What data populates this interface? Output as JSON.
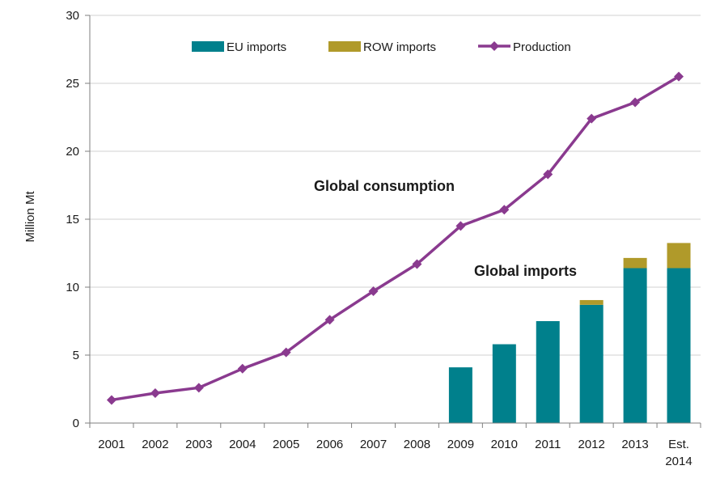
{
  "chart_data": {
    "type": "bar",
    "title": "",
    "xlabel": "",
    "ylabel": "Million Mt",
    "ylim": [
      0,
      30
    ],
    "yticks": [
      0,
      5,
      10,
      15,
      20,
      25,
      30
    ],
    "categories": [
      [
        "2001"
      ],
      [
        "2002"
      ],
      [
        "2003"
      ],
      [
        "2004"
      ],
      [
        "2005"
      ],
      [
        "2006"
      ],
      [
        "2007"
      ],
      [
        "2008"
      ],
      [
        "2009"
      ],
      [
        "2010"
      ],
      [
        "2011"
      ],
      [
        "2012"
      ],
      [
        "2013"
      ],
      [
        "Est.",
        "2014"
      ]
    ],
    "series": [
      {
        "name": "EU imports",
        "kind": "stacked-bar",
        "color": "#00808C",
        "values": [
          null,
          null,
          null,
          null,
          null,
          null,
          null,
          null,
          4.1,
          5.8,
          7.5,
          8.7,
          11.4,
          11.4
        ]
      },
      {
        "name": "ROW imports",
        "kind": "stacked-bar",
        "color": "#B09A2A",
        "values": [
          null,
          null,
          null,
          null,
          null,
          null,
          null,
          null,
          0,
          0,
          0,
          0.35,
          0.75,
          1.85
        ]
      },
      {
        "name": "Production",
        "kind": "line",
        "marker": "diamond",
        "color": "#8A3A8F",
        "values": [
          1.7,
          2.2,
          2.6,
          4.0,
          5.2,
          7.6,
          9.7,
          11.7,
          14.5,
          15.7,
          18.3,
          22.4,
          23.6,
          25.5
        ]
      }
    ],
    "annotations": [
      "Global consumption",
      "Global imports"
    ],
    "legend_position": "top-center",
    "grid": "horizontal"
  }
}
